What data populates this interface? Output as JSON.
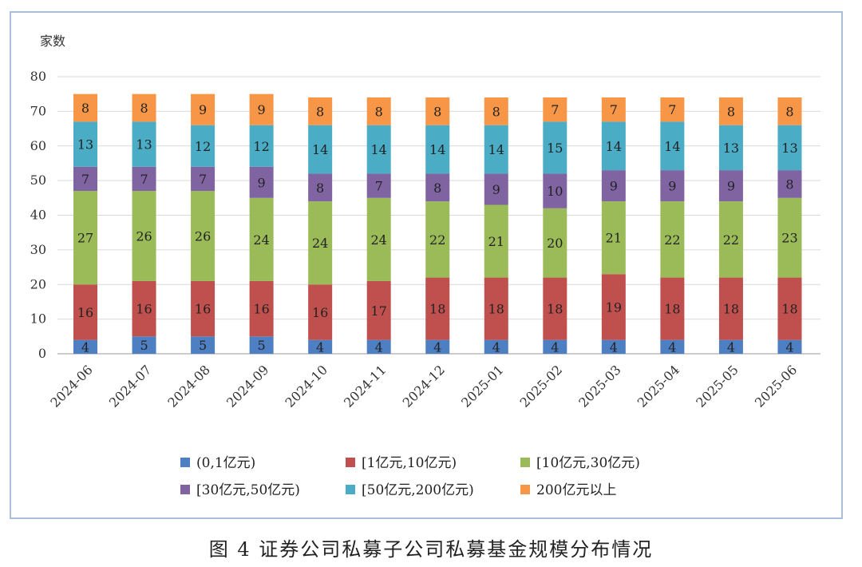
{
  "caption": "图 4   证券公司私募子公司私募基金规模分布情况",
  "chart_data": {
    "type": "bar",
    "stacked": true,
    "ylabel": "家数",
    "ylim": [
      0,
      80
    ],
    "yticks": [
      0,
      10,
      20,
      30,
      40,
      50,
      60,
      70,
      80
    ],
    "grid": true,
    "legend_position": "bottom",
    "categories": [
      "2024-06",
      "2024-07",
      "2024-08",
      "2024-09",
      "2024-10",
      "2024-11",
      "2024-12",
      "2025-01",
      "2025-02",
      "2025-03",
      "2025-04",
      "2025-05",
      "2025-06"
    ],
    "series": [
      {
        "name": "(0,1亿元)",
        "color": "#4f7fc3",
        "values": [
          4,
          5,
          5,
          5,
          4,
          4,
          4,
          4,
          4,
          4,
          4,
          4,
          4
        ]
      },
      {
        "name": "[1亿元,10亿元)",
        "color": "#c0504d",
        "values": [
          16,
          16,
          16,
          16,
          16,
          17,
          18,
          18,
          18,
          19,
          18,
          18,
          18
        ]
      },
      {
        "name": "[10亿元,30亿元)",
        "color": "#9bbb59",
        "values": [
          27,
          26,
          26,
          24,
          24,
          24,
          22,
          21,
          20,
          21,
          22,
          22,
          23
        ]
      },
      {
        "name": "[30亿元,50亿元)",
        "color": "#8064a2",
        "values": [
          7,
          7,
          7,
          9,
          8,
          7,
          8,
          9,
          10,
          9,
          9,
          9,
          8
        ]
      },
      {
        "name": "[50亿元,200亿元)",
        "color": "#4bacc6",
        "values": [
          13,
          13,
          12,
          12,
          14,
          14,
          14,
          14,
          15,
          14,
          14,
          13,
          13
        ]
      },
      {
        "name": "200亿元以上",
        "color": "#f79646",
        "values": [
          8,
          8,
          9,
          9,
          8,
          8,
          8,
          8,
          7,
          7,
          7,
          8,
          8
        ]
      }
    ]
  }
}
